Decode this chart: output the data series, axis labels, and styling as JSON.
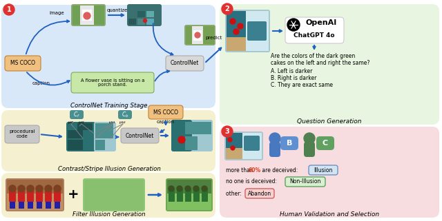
{
  "panel1_bg": "#d8e8f8",
  "panel2_bg": "#f5f0d0",
  "panel3_bg": "#e8f5e0",
  "panel5_bg": "#f8dde0",
  "box_orange": "#f0c080",
  "box_green_light": "#c8e8a8",
  "box_gray": "#d8d8d8",
  "box_gray2": "#c8c8c8",
  "teal_dark": "#2a7070",
  "teal_mid": "#4a9090",
  "teal_light": "#a0c8d0",
  "arrow_blue": "#2060c0",
  "section1_title": "ControlNet Training Stage",
  "section2_title": "Contrast/Stripe Illusion Generation",
  "section3_title": "Filter Illusion Generation",
  "section4_title": "Question Generation",
  "section5_title": "Human Validation and Selection",
  "caption_text": "A flower vase is sitting on a\nporch stand.",
  "ms_coco": "MS COCO",
  "controlnet": "ControlNet",
  "procedural_code": "procedural\ncode",
  "illusion_label": "Illusion",
  "non_illusion_label": "Non-Illusion",
  "abandon_label": "Abandon",
  "more_60_text": "more than ",
  "more_60_pct": "60%",
  "more_60_rest": " are deceived: ",
  "no_one_text": "no one is deceived: ",
  "other_text": "other: ",
  "chatgpt_label": "ChatGPT 4o",
  "openai_label": "OpenAI",
  "question_line1": "Are the colors of the dark green",
  "question_line2": "cakes on the left and right the same?",
  "question_a": "A. Left is darker",
  "question_b": "B. Right is darker",
  "question_c": "C. They are exact same",
  "image_label": "image",
  "quantize_label": "quantize",
  "predict_label": "predict",
  "caption_label": "caption",
  "caption_label2": "caption"
}
